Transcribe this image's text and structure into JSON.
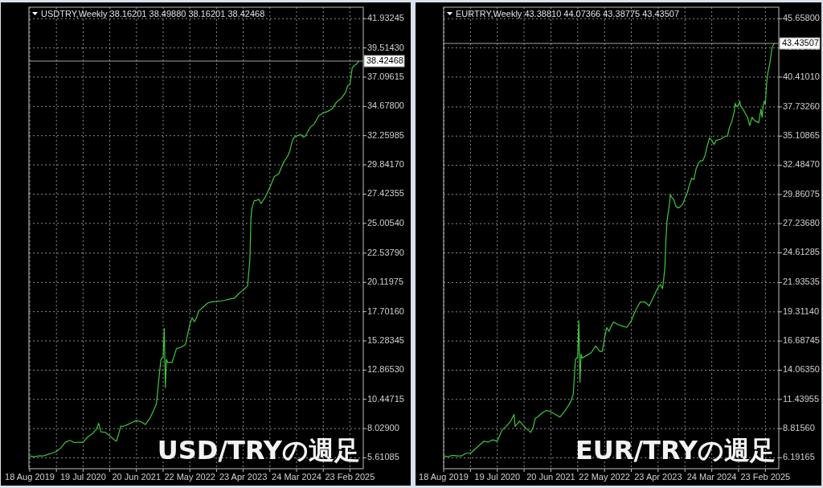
{
  "chart_data": [
    {
      "type": "line",
      "title": "USDTRY,Weekly  38.16201 38.49880 38.16201 38.42468",
      "annotations": [
        "USD/TRYの週足"
      ],
      "x": [
        "2019-08-18",
        "2019-09-15",
        "2019-10-13",
        "2019-11-10",
        "2019-12-08",
        "2020-01-05",
        "2020-02-02",
        "2020-03-01",
        "2020-03-29",
        "2020-04-26",
        "2020-05-24",
        "2020-06-21",
        "2020-07-19",
        "2020-08-16",
        "2020-09-13",
        "2020-10-11",
        "2020-10-25",
        "2020-11-08",
        "2020-12-06",
        "2021-01-03",
        "2021-01-31",
        "2021-02-14",
        "2021-02-28",
        "2021-03-14",
        "2021-03-28",
        "2021-04-25",
        "2021-05-23",
        "2021-06-20",
        "2021-07-18",
        "2021-08-15",
        "2021-09-12",
        "2021-10-10",
        "2021-10-24",
        "2021-11-07",
        "2021-11-21",
        "2021-12-05",
        "2021-12-12",
        "2021-12-19",
        "2021-12-26",
        "2022-01-02",
        "2022-01-30",
        "2022-02-27",
        "2022-03-27",
        "2022-04-24",
        "2022-05-22",
        "2022-06-05",
        "2022-06-19",
        "2022-07-03",
        "2022-07-17",
        "2022-08-14",
        "2022-09-11",
        "2022-10-09",
        "2022-11-06",
        "2022-12-04",
        "2023-01-01",
        "2023-01-29",
        "2023-02-26",
        "2023-03-26",
        "2023-04-23",
        "2023-05-21",
        "2023-06-04",
        "2023-06-11",
        "2023-06-18",
        "2023-07-02",
        "2023-07-16",
        "2023-07-30",
        "2023-08-13",
        "2023-09-10",
        "2023-10-08",
        "2023-11-05",
        "2023-12-03",
        "2023-12-31",
        "2024-01-28",
        "2024-02-11",
        "2024-02-25",
        "2024-03-10",
        "2024-03-24",
        "2024-04-21",
        "2024-05-05",
        "2024-05-19",
        "2024-06-16",
        "2024-07-14",
        "2024-08-11",
        "2024-09-08",
        "2024-10-06",
        "2024-11-03",
        "2024-12-01",
        "2024-12-29",
        "2025-01-26",
        "2025-02-09",
        "2025-02-23",
        "2025-03-09",
        "2025-03-23",
        "2025-04-06",
        "2025-04-20"
      ],
      "series": [
        {
          "color": "#3cc83c",
          "values": [
            5.76,
            5.7,
            5.76,
            5.76,
            5.88,
            5.99,
            6.14,
            6.43,
            6.9,
            7.05,
            6.87,
            6.9,
            6.9,
            7.32,
            7.58,
            7.98,
            8.47,
            7.76,
            7.72,
            7.43,
            7.1,
            6.99,
            7.58,
            8.25,
            8.2,
            8.36,
            8.53,
            8.69,
            8.6,
            8.36,
            8.87,
            9.65,
            10.09,
            11.98,
            13.75,
            13.97,
            16.3,
            11.42,
            13.75,
            13.5,
            13.5,
            14.64,
            14.75,
            14.97,
            16.64,
            17.2,
            16.86,
            17.2,
            17.75,
            18.08,
            18.41,
            18.52,
            18.55,
            18.59,
            18.64,
            18.75,
            18.81,
            19.19,
            19.48,
            19.85,
            22.0,
            25.5,
            26.3,
            26.9,
            26.9,
            27.0,
            26.64,
            27.2,
            27.99,
            28.88,
            29.1,
            30.0,
            30.56,
            31.0,
            31.79,
            32.13,
            32.24,
            32.35,
            32.13,
            32.24,
            32.91,
            33.25,
            33.92,
            34.14,
            34.26,
            34.48,
            35.04,
            35.33,
            35.83,
            36.39,
            36.5,
            37.84,
            38.07,
            38.18,
            38.42
          ]
        }
      ],
      "xlim": [
        "2019-08-13",
        "2025-05-18"
      ],
      "ylim": [
        4.71,
        42.88
      ],
      "xticks": [
        {
          "value": "2019-08-18",
          "label": "18 Aug 2019"
        },
        {
          "value": "2020-02-02",
          "label": null
        },
        {
          "value": "2020-07-19",
          "label": "19 Jul 2020"
        },
        {
          "value": "2021-01-03",
          "label": null
        },
        {
          "value": "2021-06-20",
          "label": "20 Jun 2021"
        },
        {
          "value": "2021-12-05",
          "label": null
        },
        {
          "value": "2022-05-22",
          "label": "22 May 2022"
        },
        {
          "value": "2022-11-06",
          "label": null
        },
        {
          "value": "2023-04-23",
          "label": "23 Apr 2023"
        },
        {
          "value": "2023-10-08",
          "label": null
        },
        {
          "value": "2024-03-24",
          "label": "24 Mar 2024"
        },
        {
          "value": "2024-09-08",
          "label": null
        },
        {
          "value": "2025-02-23",
          "label": "23 Feb 2025"
        }
      ],
      "yticks": [
        5.61085,
        {
          "value": 8.029,
          "label": "8.02900"
        },
        10.44715,
        {
          "value": 12.8653,
          "label": "12.86530"
        },
        15.28345,
        {
          "value": 17.7016,
          "label": "17.70160"
        },
        20.11975,
        {
          "value": 22.5379,
          "label": "22.53790"
        },
        {
          "value": 25.0054,
          "label": "25.00540"
        },
        27.42355,
        {
          "value": 29.8417,
          "label": "29.84170"
        },
        32.25985,
        {
          "value": 34.678,
          "label": "34.67800"
        },
        37.09615,
        {
          "value": 39.5143,
          "label": "39.51430"
        },
        41.93245
      ],
      "grid": true,
      "ref_lines": [
        {
          "axis": "y",
          "value": 38.42468,
          "label": "38.42468",
          "color": "#a0a0a0"
        }
      ]
    },
    {
      "type": "line",
      "title": "EURTRY,Weekly  43.38810 44.07366 43.38775 43.43507",
      "annotations": [
        "EUR/TRYの週足"
      ],
      "x": [
        "2019-08-18",
        "2019-09-15",
        "2019-10-13",
        "2019-11-10",
        "2019-12-08",
        "2020-01-05",
        "2020-02-02",
        "2020-03-01",
        "2020-03-29",
        "2020-04-26",
        "2020-05-24",
        "2020-06-21",
        "2020-07-19",
        "2020-08-16",
        "2020-09-13",
        "2020-10-11",
        "2020-11-01",
        "2020-11-08",
        "2020-12-06",
        "2021-01-03",
        "2021-01-31",
        "2021-02-14",
        "2021-02-28",
        "2021-03-14",
        "2021-03-28",
        "2021-04-25",
        "2021-05-23",
        "2021-06-20",
        "2021-07-18",
        "2021-08-15",
        "2021-09-12",
        "2021-10-10",
        "2021-10-24",
        "2021-11-07",
        "2021-11-21",
        "2021-12-05",
        "2021-12-12",
        "2021-12-19",
        "2021-12-26",
        "2022-01-02",
        "2022-01-30",
        "2022-02-27",
        "2022-03-27",
        "2022-04-10",
        "2022-04-24",
        "2022-05-08",
        "2022-05-22",
        "2022-06-05",
        "2022-06-19",
        "2022-07-03",
        "2022-07-17",
        "2022-08-14",
        "2022-09-11",
        "2022-10-09",
        "2022-11-06",
        "2022-12-04",
        "2023-01-01",
        "2023-01-29",
        "2023-02-26",
        "2023-03-26",
        "2023-04-23",
        "2023-05-07",
        "2023-05-21",
        "2023-06-04",
        "2023-06-11",
        "2023-06-18",
        "2023-07-02",
        "2023-07-09",
        "2023-07-16",
        "2023-07-30",
        "2023-08-13",
        "2023-08-27",
        "2023-09-10",
        "2023-09-24",
        "2023-10-08",
        "2023-10-22",
        "2023-11-05",
        "2023-11-19",
        "2023-12-03",
        "2023-12-17",
        "2023-12-31",
        "2024-01-14",
        "2024-01-28",
        "2024-02-11",
        "2024-02-25",
        "2024-03-10",
        "2024-03-24",
        "2024-04-07",
        "2024-04-21",
        "2024-05-19",
        "2024-06-16",
        "2024-06-30",
        "2024-07-14",
        "2024-07-28",
        "2024-08-11",
        "2024-08-18",
        "2024-08-25",
        "2024-09-08",
        "2024-09-15",
        "2024-09-22",
        "2024-10-06",
        "2024-10-20",
        "2024-11-03",
        "2024-11-17",
        "2024-12-01",
        "2024-12-15",
        "2024-12-29",
        "2025-01-12",
        "2025-01-26",
        "2025-02-02",
        "2025-02-09",
        "2025-02-16",
        "2025-02-23",
        "2025-03-02",
        "2025-03-09",
        "2025-03-23",
        "2025-04-06",
        "2025-04-20"
      ],
      "series": [
        {
          "color": "#3cc83c",
          "values": [
            6.36,
            6.29,
            6.41,
            6.36,
            6.36,
            6.6,
            6.6,
            6.96,
            7.32,
            7.68,
            7.61,
            7.8,
            7.68,
            8.65,
            9.01,
            9.49,
            10.09,
            9.01,
            9.49,
            9.01,
            8.65,
            8.48,
            8.89,
            9.73,
            9.85,
            10.21,
            10.45,
            10.33,
            10.09,
            9.85,
            10.33,
            10.93,
            11.29,
            11.9,
            15.03,
            15.27,
            18.52,
            12.98,
            15.51,
            15.15,
            15.39,
            15.63,
            16.23,
            15.99,
            15.75,
            15.75,
            16.95,
            17.91,
            17.55,
            18.03,
            18.4,
            18.16,
            18.03,
            17.91,
            18.52,
            19.48,
            20.2,
            20.2,
            19.84,
            20.68,
            21.52,
            21.76,
            21.4,
            23.21,
            25.85,
            27.55,
            28.89,
            29.86,
            29.62,
            29.4,
            28.77,
            28.65,
            28.77,
            29.0,
            29.5,
            29.98,
            30.71,
            31.32,
            31.2,
            32.17,
            32.66,
            32.9,
            32.9,
            33.38,
            34.24,
            34.96,
            34.72,
            34.36,
            34.72,
            34.84,
            35.09,
            35.09,
            35.94,
            36.42,
            37.27,
            38.05,
            37.76,
            37.88,
            38.24,
            37.76,
            37.52,
            37.15,
            36.79,
            36.06,
            36.79,
            36.54,
            36.42,
            36.3,
            37.52,
            36.79,
            37.76,
            38.24,
            38.0,
            39.7,
            40.67,
            41.65,
            43.1,
            43.44
          ]
        }
      ],
      "xlim": [
        "2019-08-18",
        "2025-05-18"
      ],
      "ylim": [
        5.21,
        46.69
      ],
      "xticks": [
        {
          "value": "2019-08-18",
          "label": "18 Aug 2019"
        },
        {
          "value": "2020-02-02",
          "label": null
        },
        {
          "value": "2020-07-19",
          "label": "19 Jul 2020"
        },
        {
          "value": "2021-01-03",
          "label": null
        },
        {
          "value": "2021-06-20",
          "label": "20 Jun 2021"
        },
        {
          "value": "2021-12-05",
          "label": null
        },
        {
          "value": "2022-05-22",
          "label": "22 May 2022"
        },
        {
          "value": "2022-11-06",
          "label": null
        },
        {
          "value": "2023-04-23",
          "label": "23 Apr 2023"
        },
        {
          "value": "2023-10-08",
          "label": null
        },
        {
          "value": "2024-03-24",
          "label": "24 Mar 2024"
        },
        {
          "value": "2024-09-08",
          "label": null
        },
        {
          "value": "2025-02-23",
          "label": "23 Feb 2025"
        }
      ],
      "yticks": [
        6.19165,
        {
          "value": 8.8156,
          "label": "8.81560"
        },
        11.43955,
        {
          "value": 14.0635,
          "label": "14.06350"
        },
        16.68745,
        {
          "value": 19.3114,
          "label": "19.31140"
        },
        21.93535,
        24.61285,
        {
          "value": 27.2368,
          "label": "27.23680"
        },
        29.86075,
        {
          "value": 32.4847,
          "label": "32.48470"
        },
        35.10865,
        {
          "value": 37.7326,
          "label": "37.73260"
        },
        {
          "value": 40.4101,
          "label": "40.41010"
        },
        43.03405,
        {
          "value": 45.658,
          "label": "45.65800"
        }
      ],
      "grid": true,
      "ref_lines": [
        {
          "axis": "y",
          "value": 43.43507,
          "label": "43.43507",
          "color": "#a0a0a0"
        }
      ]
    }
  ]
}
